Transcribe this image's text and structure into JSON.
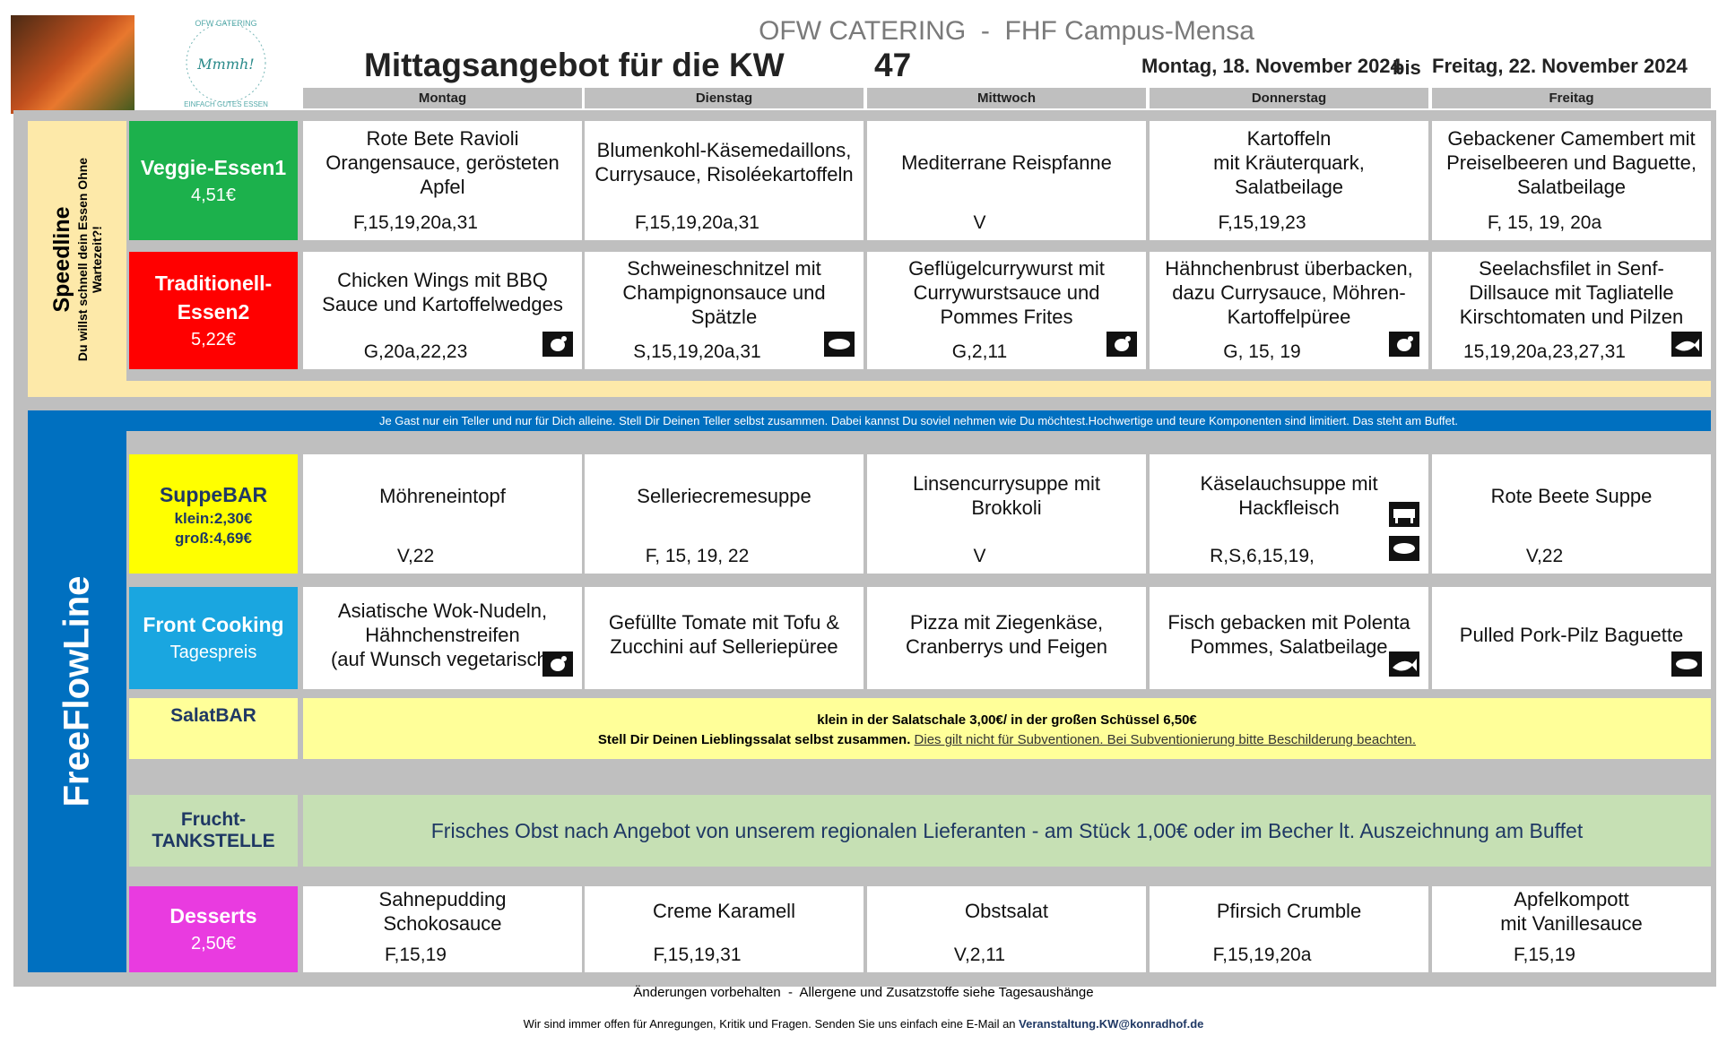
{
  "logo": {
    "brand": "OFW CATERING",
    "script": "Mmmh!",
    "slogan": "EINFACH GUTES ESSEN"
  },
  "header": {
    "title": "OFW CATERING  -  FHF Campus-Mensa",
    "heading": "Mittagsangebot für die KW",
    "week": "47",
    "from": "Montag, 18. November 2024",
    "bis": "bis",
    "to": "Freitag, 22. November 2024"
  },
  "days": [
    "Montag",
    "Dienstag",
    "Mittwoch",
    "Donnerstag",
    "Freitag"
  ],
  "speedline": {
    "title": "Speedline",
    "subtitle": [
      "Du willst schnell dein Essen Ohne",
      "Wartezeit?!"
    ]
  },
  "freeflow": {
    "title": "FreeFlowLine",
    "notice": "Je Gast nur ein Teller und nur für Dich alleine. Stell Dir Deinen Teller selbst zusammen. Dabei kannst Du soviel nehmen wie Du möchtest.Hochwertige und teure Komponenten sind limitiert. Das steht am Buffet."
  },
  "rows": [
    {
      "label": [
        "Veggie-Essen1"
      ],
      "price": [
        "4,51€"
      ],
      "cells": [
        {
          "dish": [
            "Rote Bete Ravioli",
            "Orangensauce, gerösteten",
            "Apfel"
          ],
          "allergens": "F,15,19,20a,31"
        },
        {
          "dish": [
            "Blumenkohl-Käsemedaillons,",
            "Currysauce, Risoléekartoffeln"
          ],
          "allergens": "F,15,19,20a,31"
        },
        {
          "dish": [
            "Mediterrane Reispfanne"
          ],
          "allergens": "V"
        },
        {
          "dish": [
            "Kartoffeln",
            "mit Kräuterquark,",
            "Salatbeilage"
          ],
          "allergens": "F,15,19,23"
        },
        {
          "dish": [
            "Gebackener Camembert mit",
            "Preiselbeeren und Baguette,",
            "Salatbeilage"
          ],
          "allergens": "F, 15, 19, 20a"
        }
      ]
    },
    {
      "label": [
        "Traditionell-",
        "Essen2"
      ],
      "price": [
        "5,22€"
      ],
      "cells": [
        {
          "dish": [
            "Chicken Wings mit BBQ",
            "Sauce und Kartoffelwedges"
          ],
          "allergens": "G,20a,22,23"
        },
        {
          "dish": [
            "Schweineschnitzel mit",
            "Champignonsauce und",
            "Spätzle"
          ],
          "allergens": "S,15,19,20a,31"
        },
        {
          "dish": [
            "Geflügelcurrywurst mit",
            "Currywurstsauce und",
            "Pommes Frites"
          ],
          "allergens": "G,2,11"
        },
        {
          "dish": [
            "Hähnchenbrust überbacken,",
            "dazu Currysauce, Möhren-",
            "Kartoffelpüree"
          ],
          "allergens": "G, 15, 19"
        },
        {
          "dish": [
            "Seelachsfilet in Senf-",
            "Dillsauce mit Tagliatelle",
            "Kirschtomaten und Pilzen"
          ],
          "allergens": "15,19,20a,23,27,31"
        }
      ]
    },
    {
      "label": [
        "SuppeBAR"
      ],
      "price": [
        "klein:2,30€",
        "groß:4,69€"
      ],
      "cells": [
        {
          "dish": [
            "Möhreneintopf"
          ],
          "allergens": "V,22"
        },
        {
          "dish": [
            "Selleriecremesuppe"
          ],
          "allergens": "F, 15, 19, 22"
        },
        {
          "dish": [
            "Linsencurrysuppe mit",
            "Brokkoli"
          ],
          "allergens": "V"
        },
        {
          "dish": [
            "Käselauchsuppe mit",
            "Hackfleisch"
          ],
          "allergens": "R,S,6,15,19,"
        },
        {
          "dish": [
            "Rote Beete Suppe"
          ],
          "allergens": "V,22"
        }
      ]
    },
    {
      "label": [
        "Front Cooking"
      ],
      "price": [
        "Tagespreis"
      ],
      "cells": [
        {
          "dish": [
            "Asiatische Wok-Nudeln,",
            "Hähnchenstreifen",
            "(auf Wunsch vegetarisch)"
          ]
        },
        {
          "dish": [
            "Gefüllte Tomate mit Tofu &",
            "Zucchini auf Selleriepüree"
          ]
        },
        {
          "dish": [
            "Pizza mit Ziegenkäse,",
            "Cranberrys und Feigen"
          ]
        },
        {
          "dish": [
            "Fisch gebacken mit Polenta",
            "Pommes, Salatbeilage"
          ]
        },
        {
          "dish": [
            "Pulled Pork-Pilz Baguette"
          ]
        }
      ]
    },
    {
      "label": [
        "Desserts"
      ],
      "price": [
        "2,50€"
      ],
      "cells": [
        {
          "dish": [
            "Sahnepudding",
            "Schokosauce"
          ],
          "allergens": "F,15,19"
        },
        {
          "dish": [
            "Creme Karamell"
          ],
          "allergens": "F,15,19,31"
        },
        {
          "dish": [
            "Obstsalat"
          ],
          "allergens": "V,2,11"
        },
        {
          "dish": [
            "Pfirsich Crumble"
          ],
          "allergens": "F,15,19,20a"
        },
        {
          "dish": [
            "Apfelkompott",
            "mit Vanillesauce"
          ],
          "allergens": "F,15,19"
        }
      ]
    }
  ],
  "salat": {
    "label": "SalatBAR",
    "line1": "klein in der Salatschale 3,00€/ in der großen Schüssel 6,50€",
    "line2": "Stell Dir Deinen Lieblingssalat selbst zusammen.",
    "note": "Dies gilt nicht für Subventionen. Bei Subventionierung bitte Beschilderung beachten."
  },
  "frucht": {
    "label": [
      "Frucht-",
      "TANKSTELLE"
    ],
    "text": "Frisches Obst nach Angebot von unserem regionalen Lieferanten - am Stück 1,00€ oder im Becher lt. Auszeichnung am Buffet"
  },
  "footer": {
    "note": "Änderungen vorbehalten  -  Allergene und Zusatzstoffe siehe Tagesaushänge",
    "contact": "Wir sind immer offen für Anregungen, Kritik und Fragen. Senden Sie uns einfach eine E-Mail an",
    "email": "Veranstaltung.KW@konradhof.de"
  }
}
